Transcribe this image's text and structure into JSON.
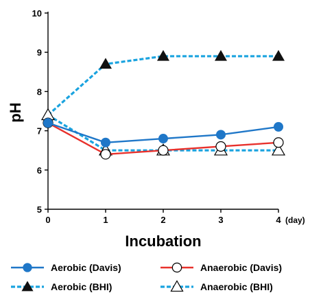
{
  "chart_data": {
    "type": "line",
    "xlabel": "Incubation",
    "ylabel": "pH",
    "x_unit_label": "(day)",
    "x": [
      0,
      1,
      2,
      3,
      4
    ],
    "xticks": [
      "0",
      "1",
      "2",
      "3",
      "4"
    ],
    "yticks": [
      "5",
      "6",
      "7",
      "8",
      "9",
      "10"
    ],
    "xlim": [
      0,
      4
    ],
    "ylim": [
      5,
      10
    ],
    "grid": false,
    "legend_position": "bottom",
    "series": [
      {
        "name": "Aerobic (Davis)",
        "values": [
          7.2,
          6.7,
          6.8,
          6.9,
          7.1
        ],
        "color": "#1f77c8",
        "line_style": "solid",
        "marker": "filled-circle"
      },
      {
        "name": "Anaerobic (Davis)",
        "values": [
          7.2,
          6.4,
          6.5,
          6.6,
          6.7
        ],
        "color": "#e8312c",
        "line_style": "solid",
        "marker": "open-circle"
      },
      {
        "name": "Aerobic (BHI)",
        "values": [
          7.4,
          8.7,
          8.9,
          8.9,
          8.9
        ],
        "color": "#1aa3df",
        "line_style": "dashed",
        "marker": "filled-triangle"
      },
      {
        "name": "Anaerobic (BHI)",
        "values": [
          7.4,
          6.5,
          6.5,
          6.5,
          6.5
        ],
        "color": "#1aa3df",
        "line_style": "dashed",
        "marker": "open-triangle"
      }
    ]
  }
}
